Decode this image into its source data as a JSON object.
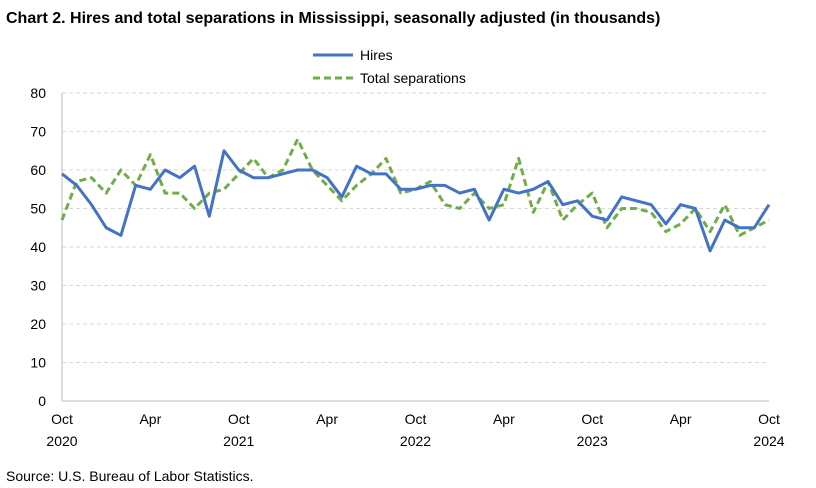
{
  "chart_data": {
    "type": "line",
    "title": "Chart 2. Hires and total separations in Mississippi, seasonally adjusted (in thousands)",
    "source": "Source: U.S. Bureau of Labor Statistics.",
    "ylim": [
      0,
      80
    ],
    "yticks": [
      "0",
      "10",
      "20",
      "30",
      "40",
      "50",
      "60",
      "70",
      "80"
    ],
    "grid": "horizontal-dashed",
    "legend_position": "top-center",
    "x_tick_labels": [
      {
        "month": "Oct",
        "year": "2020",
        "index": 0
      },
      {
        "month": "Apr",
        "year": "",
        "index": 6
      },
      {
        "month": "Oct",
        "year": "2021",
        "index": 12
      },
      {
        "month": "Apr",
        "year": "",
        "index": 18
      },
      {
        "month": "Oct",
        "year": "2022",
        "index": 24
      },
      {
        "month": "Apr",
        "year": "",
        "index": 30
      },
      {
        "month": "Oct",
        "year": "2023",
        "index": 36
      },
      {
        "month": "Apr",
        "year": "",
        "index": 42
      },
      {
        "month": "Oct",
        "year": "2024",
        "index": 48
      }
    ],
    "x_range": [
      "Oct 2020",
      "Oct 2024"
    ],
    "series": [
      {
        "name": "Hires",
        "color": "#4472C4",
        "style": "solid",
        "values": [
          59,
          56,
          51,
          45,
          43,
          56,
          55,
          60,
          58,
          61,
          48,
          65,
          60,
          58,
          58,
          59,
          60,
          60,
          58,
          53,
          61,
          59,
          59,
          55,
          55,
          56,
          56,
          54,
          55,
          47,
          55,
          54,
          55,
          57,
          51,
          52,
          48,
          47,
          53,
          52,
          51,
          46,
          51,
          50,
          39,
          47,
          45,
          45,
          51
        ]
      },
      {
        "name": "Total separations",
        "color": "#70AD47",
        "style": "dashed",
        "values": [
          47,
          57,
          58,
          54,
          60,
          56,
          64,
          54,
          54,
          50,
          54,
          55,
          59,
          63,
          58,
          60,
          68,
          60,
          56,
          52,
          56,
          59,
          63,
          54,
          55,
          57,
          51,
          50,
          54,
          50,
          51,
          63,
          49,
          57,
          47,
          51,
          54,
          45,
          50,
          50,
          49,
          44,
          46,
          50,
          44,
          51,
          43,
          45,
          47
        ]
      }
    ]
  }
}
